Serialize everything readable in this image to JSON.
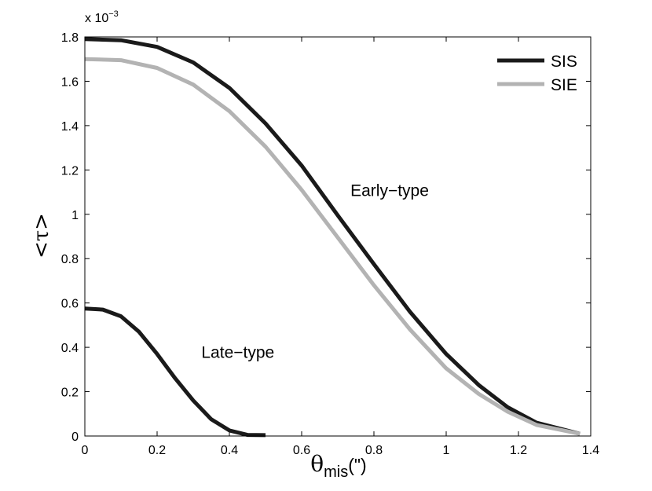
{
  "chart_data": {
    "type": "line",
    "xlabel": "θ",
    "xlabel_sub": "mis",
    "xlabel_unit": "(\")",
    "ylabel": "<τ>",
    "y_multiplier": "x 10",
    "y_multiplier_exp": "−3",
    "xlim": [
      0,
      1.4
    ],
    "ylim": [
      0,
      1.8
    ],
    "x_ticks": [
      0,
      0.2,
      0.4,
      0.6,
      0.8,
      1,
      1.2,
      1.4
    ],
    "x_tick_labels": [
      "0",
      "0.2",
      "0.4",
      "0.6",
      "0.8",
      "1",
      "1.2",
      "1.4"
    ],
    "y_ticks": [
      0,
      0.2,
      0.4,
      0.6,
      0.8,
      1,
      1.2,
      1.4,
      1.6,
      1.8
    ],
    "y_tick_labels": [
      "0",
      "0.2",
      "0.4",
      "0.6",
      "0.8",
      "1",
      "1.2",
      "1.4",
      "1.6",
      "1.8"
    ],
    "legend_position": "top-right",
    "grid": false,
    "series": [
      {
        "name": "SIS",
        "color": "#1a1a1a",
        "x": [
          0,
          0.1,
          0.2,
          0.3,
          0.4,
          0.5,
          0.6,
          0.7,
          0.8,
          0.9,
          1.0,
          1.09,
          1.17,
          1.25,
          1.37
        ],
        "y": [
          1.79,
          1.785,
          1.755,
          1.685,
          1.57,
          1.41,
          1.22,
          0.995,
          0.775,
          0.56,
          0.37,
          0.23,
          0.13,
          0.06,
          0.01
        ]
      },
      {
        "name": "SIE",
        "color": "#b3b3b3",
        "x": [
          0,
          0.1,
          0.2,
          0.3,
          0.4,
          0.5,
          0.6,
          0.7,
          0.8,
          0.9,
          1.0,
          1.09,
          1.17,
          1.25,
          1.37
        ],
        "y": [
          1.7,
          1.695,
          1.66,
          1.585,
          1.465,
          1.305,
          1.11,
          0.895,
          0.68,
          0.48,
          0.305,
          0.19,
          0.11,
          0.05,
          0.01
        ]
      },
      {
        "name": "",
        "color": "#1a1a1a",
        "x": [
          0,
          0.05,
          0.1,
          0.15,
          0.2,
          0.25,
          0.3,
          0.35,
          0.4,
          0.45,
          0.5
        ],
        "y": [
          0.575,
          0.57,
          0.54,
          0.47,
          0.37,
          0.26,
          0.16,
          0.075,
          0.025,
          0.005,
          0.004
        ]
      }
    ],
    "annotations": [
      {
        "text": "Early−type",
        "x": 0.8,
        "y": 1.05
      },
      {
        "text": "Late−type",
        "x": 0.38,
        "y": 0.32
      }
    ]
  }
}
